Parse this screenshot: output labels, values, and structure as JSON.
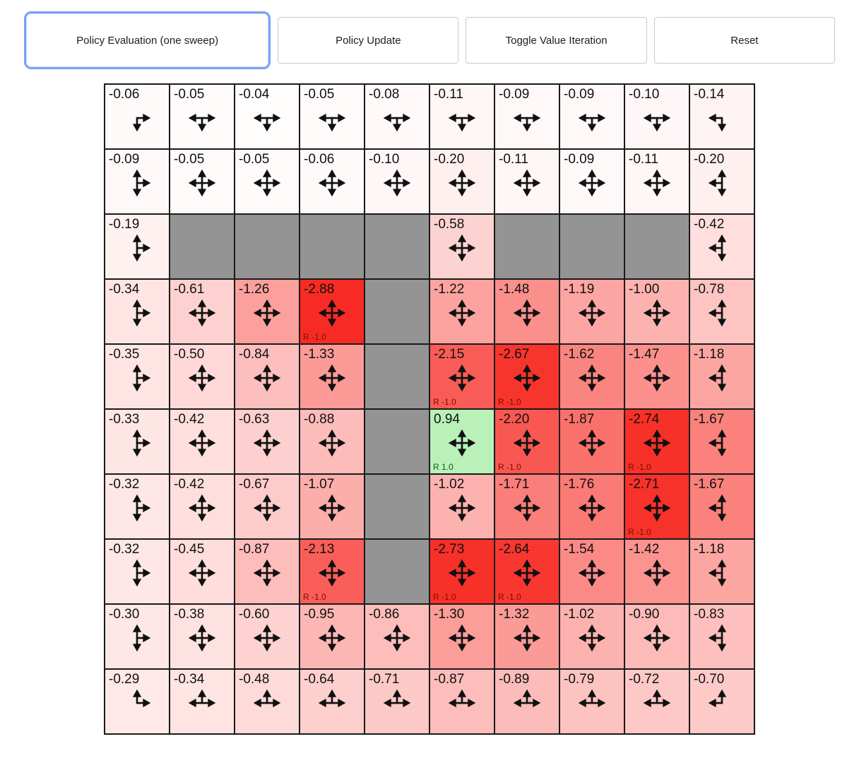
{
  "toolbar": {
    "buttons": [
      {
        "label": "Policy Evaluation (one sweep)",
        "active": true
      },
      {
        "label": "Policy Update",
        "active": false
      },
      {
        "label": "Toggle Value Iteration",
        "active": false
      },
      {
        "label": "Reset",
        "active": false
      }
    ]
  },
  "colors": {
    "active_button_border": "#78a4f2",
    "button_border": "#c9c9c9",
    "wall": "#949494",
    "grid_line": "#1a1a1a",
    "reward_negative_text": "#7a0d00",
    "reward_positive_text": "#0a5d16",
    "positive_cell": "#b8f1b8",
    "strong_negative_cell": "#f72b23"
  },
  "grid": {
    "rows": 10,
    "cols": 10,
    "cells": [
      [
        {
          "v": "-0.06",
          "a": "DR"
        },
        {
          "v": "-0.05",
          "a": "DLR"
        },
        {
          "v": "-0.04",
          "a": "DLR"
        },
        {
          "v": "-0.05",
          "a": "DLR"
        },
        {
          "v": "-0.08",
          "a": "DLR"
        },
        {
          "v": "-0.11",
          "a": "DLR"
        },
        {
          "v": "-0.09",
          "a": "DLR"
        },
        {
          "v": "-0.09",
          "a": "DLR"
        },
        {
          "v": "-0.10",
          "a": "DLR"
        },
        {
          "v": "-0.14",
          "a": "DL"
        }
      ],
      [
        {
          "v": "-0.09",
          "a": "UDR"
        },
        {
          "v": "-0.05",
          "a": "UDLR"
        },
        {
          "v": "-0.05",
          "a": "UDLR"
        },
        {
          "v": "-0.06",
          "a": "UDLR"
        },
        {
          "v": "-0.10",
          "a": "UDLR"
        },
        {
          "v": "-0.20",
          "a": "UDLR"
        },
        {
          "v": "-0.11",
          "a": "UDLR"
        },
        {
          "v": "-0.09",
          "a": "UDLR"
        },
        {
          "v": "-0.11",
          "a": "UDLR"
        },
        {
          "v": "-0.20",
          "a": "UDL"
        }
      ],
      [
        {
          "v": "-0.19",
          "a": "UDR"
        },
        {
          "w": true
        },
        {
          "w": true
        },
        {
          "w": true
        },
        {
          "w": true
        },
        {
          "v": "-0.58",
          "a": "UDLR"
        },
        {
          "w": true
        },
        {
          "w": true
        },
        {
          "w": true
        },
        {
          "v": "-0.42",
          "a": "UDL"
        }
      ],
      [
        {
          "v": "-0.34",
          "a": "UDR"
        },
        {
          "v": "-0.61",
          "a": "UDLR"
        },
        {
          "v": "-1.26",
          "a": "UDLR"
        },
        {
          "v": "-2.88",
          "a": "UDLR",
          "r": "R -1.0"
        },
        {
          "w": true
        },
        {
          "v": "-1.22",
          "a": "UDLR"
        },
        {
          "v": "-1.48",
          "a": "UDLR"
        },
        {
          "v": "-1.19",
          "a": "UDLR"
        },
        {
          "v": "-1.00",
          "a": "UDLR"
        },
        {
          "v": "-0.78",
          "a": "UDL"
        }
      ],
      [
        {
          "v": "-0.35",
          "a": "UDR"
        },
        {
          "v": "-0.50",
          "a": "UDLR"
        },
        {
          "v": "-0.84",
          "a": "UDLR"
        },
        {
          "v": "-1.33",
          "a": "UDLR"
        },
        {
          "w": true
        },
        {
          "v": "-2.15",
          "a": "UDLR",
          "r": "R -1.0"
        },
        {
          "v": "-2.67",
          "a": "UDLR",
          "r": "R -1.0"
        },
        {
          "v": "-1.62",
          "a": "UDLR"
        },
        {
          "v": "-1.47",
          "a": "UDLR"
        },
        {
          "v": "-1.18",
          "a": "UDL"
        }
      ],
      [
        {
          "v": "-0.33",
          "a": "UDR"
        },
        {
          "v": "-0.42",
          "a": "UDLR"
        },
        {
          "v": "-0.63",
          "a": "UDLR"
        },
        {
          "v": "-0.88",
          "a": "UDLR"
        },
        {
          "w": true
        },
        {
          "v": "0.94",
          "a": "UDLR",
          "r": "R 1.0"
        },
        {
          "v": "-2.20",
          "a": "UDLR",
          "r": "R -1.0"
        },
        {
          "v": "-1.87",
          "a": "UDLR"
        },
        {
          "v": "-2.74",
          "a": "UDLR",
          "r": "R -1.0"
        },
        {
          "v": "-1.67",
          "a": "UDL"
        }
      ],
      [
        {
          "v": "-0.32",
          "a": "UDR"
        },
        {
          "v": "-0.42",
          "a": "UDLR"
        },
        {
          "v": "-0.67",
          "a": "UDLR"
        },
        {
          "v": "-1.07",
          "a": "UDLR"
        },
        {
          "w": true
        },
        {
          "v": "-1.02",
          "a": "UDLR"
        },
        {
          "v": "-1.71",
          "a": "UDLR"
        },
        {
          "v": "-1.76",
          "a": "UDLR"
        },
        {
          "v": "-2.71",
          "a": "UDLR",
          "r": "R -1.0"
        },
        {
          "v": "-1.67",
          "a": "UDL"
        }
      ],
      [
        {
          "v": "-0.32",
          "a": "UDR"
        },
        {
          "v": "-0.45",
          "a": "UDLR"
        },
        {
          "v": "-0.87",
          "a": "UDLR"
        },
        {
          "v": "-2.13",
          "a": "UDLR",
          "r": "R -1.0"
        },
        {
          "w": true
        },
        {
          "v": "-2.73",
          "a": "UDLR",
          "r": "R -1.0"
        },
        {
          "v": "-2.64",
          "a": "UDLR",
          "r": "R -1.0"
        },
        {
          "v": "-1.54",
          "a": "UDLR"
        },
        {
          "v": "-1.42",
          "a": "UDLR"
        },
        {
          "v": "-1.18",
          "a": "UDL"
        }
      ],
      [
        {
          "v": "-0.30",
          "a": "UDR"
        },
        {
          "v": "-0.38",
          "a": "UDLR"
        },
        {
          "v": "-0.60",
          "a": "UDLR"
        },
        {
          "v": "-0.95",
          "a": "UDLR"
        },
        {
          "v": "-0.86",
          "a": "UDLR"
        },
        {
          "v": "-1.30",
          "a": "UDLR"
        },
        {
          "v": "-1.32",
          "a": "UDLR"
        },
        {
          "v": "-1.02",
          "a": "UDLR"
        },
        {
          "v": "-0.90",
          "a": "UDLR"
        },
        {
          "v": "-0.83",
          "a": "UDL"
        }
      ],
      [
        {
          "v": "-0.29",
          "a": "UR"
        },
        {
          "v": "-0.34",
          "a": "ULR"
        },
        {
          "v": "-0.48",
          "a": "ULR"
        },
        {
          "v": "-0.64",
          "a": "ULR"
        },
        {
          "v": "-0.71",
          "a": "ULR"
        },
        {
          "v": "-0.87",
          "a": "ULR"
        },
        {
          "v": "-0.89",
          "a": "ULR"
        },
        {
          "v": "-0.79",
          "a": "ULR"
        },
        {
          "v": "-0.72",
          "a": "ULR"
        },
        {
          "v": "-0.70",
          "a": "UL"
        }
      ]
    ]
  }
}
